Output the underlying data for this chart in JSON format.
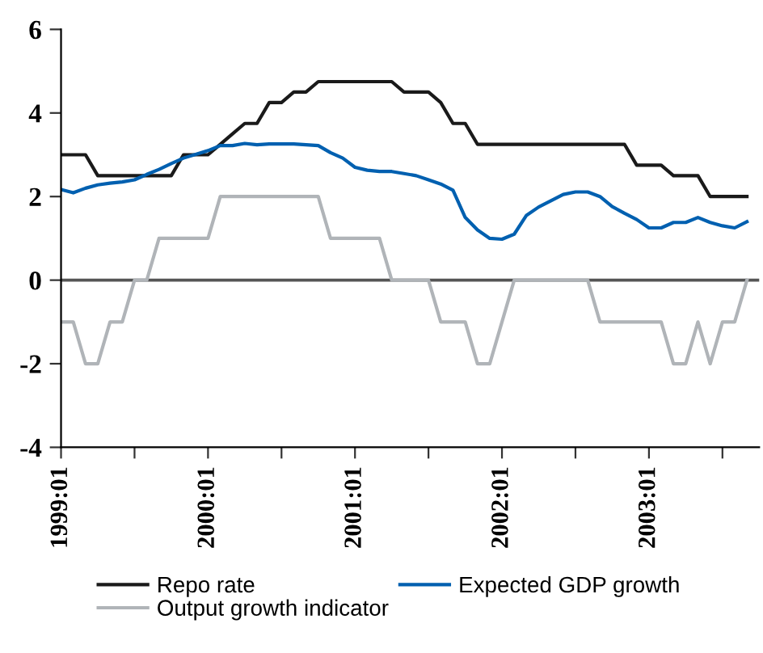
{
  "chart_data": {
    "type": "line",
    "categories": [
      "1999:01",
      null,
      null,
      null,
      null,
      null,
      null,
      null,
      null,
      null,
      null,
      null,
      "2000:01",
      null,
      null,
      null,
      null,
      null,
      null,
      null,
      null,
      null,
      null,
      null,
      "2001:01",
      null,
      null,
      null,
      null,
      null,
      null,
      null,
      null,
      null,
      null,
      null,
      "2002:01",
      null,
      null,
      null,
      null,
      null,
      null,
      null,
      null,
      null,
      null,
      null,
      "2003:01",
      null,
      null,
      null,
      null,
      null,
      null,
      null,
      null
    ],
    "series": [
      {
        "name": "Repo rate",
        "color": "#1a1a1a",
        "values": [
          3.0,
          3.0,
          3.0,
          2.5,
          2.5,
          2.5,
          2.5,
          2.5,
          2.5,
          2.5,
          3.0,
          3.0,
          3.0,
          3.25,
          3.5,
          3.75,
          3.75,
          4.25,
          4.25,
          4.5,
          4.5,
          4.75,
          4.75,
          4.75,
          4.75,
          4.75,
          4.75,
          4.75,
          4.5,
          4.5,
          4.5,
          4.25,
          3.75,
          3.75,
          3.25,
          3.25,
          3.25,
          3.25,
          3.25,
          3.25,
          3.25,
          3.25,
          3.25,
          3.25,
          3.25,
          3.25,
          3.25,
          2.75,
          2.75,
          2.75,
          2.5,
          2.5,
          2.5,
          2.0,
          2.0,
          2.0,
          2.0
        ]
      },
      {
        "name": "Expected GDP growth",
        "color": "#0060b0",
        "values": [
          2.17,
          2.09,
          2.2,
          2.28,
          2.32,
          2.35,
          2.4,
          2.53,
          2.65,
          2.79,
          2.92,
          3.01,
          3.1,
          3.22,
          3.22,
          3.27,
          3.24,
          3.26,
          3.26,
          3.26,
          3.24,
          3.22,
          3.05,
          2.92,
          2.7,
          2.63,
          2.6,
          2.6,
          2.55,
          2.5,
          2.4,
          2.3,
          2.15,
          1.5,
          1.2,
          1.0,
          0.98,
          1.1,
          1.55,
          1.75,
          1.9,
          2.05,
          2.11,
          2.11,
          2.0,
          1.76,
          1.6,
          1.45,
          1.25,
          1.25,
          1.38,
          1.38,
          1.5,
          1.38,
          1.3,
          1.25,
          1.4
        ]
      },
      {
        "name": "Output growth indicator",
        "color": "#b0b4b8",
        "values": [
          -1,
          -1,
          -2,
          -2,
          -1,
          -1,
          0,
          0,
          1,
          1,
          1,
          1,
          1,
          2,
          2,
          2,
          2,
          2,
          2,
          2,
          2,
          2,
          1,
          1,
          1,
          1,
          1,
          0,
          0,
          0,
          0,
          -1,
          -1,
          -1,
          -2,
          -2,
          -1,
          0,
          0,
          0,
          0,
          0,
          0,
          0,
          -1,
          -1,
          -1,
          -1,
          -1,
          -1,
          -2,
          -2,
          -1,
          -2,
          -1,
          -1,
          0
        ]
      }
    ],
    "ylim": [
      -4,
      6
    ],
    "yticks": [
      -4,
      -2,
      0,
      2,
      4,
      6
    ],
    "ref_lines": [
      {
        "axis": "y",
        "value": 0,
        "color": "#555555"
      }
    ],
    "legend": "bottom",
    "grid": false,
    "marker": "none",
    "line_style": "solid"
  }
}
